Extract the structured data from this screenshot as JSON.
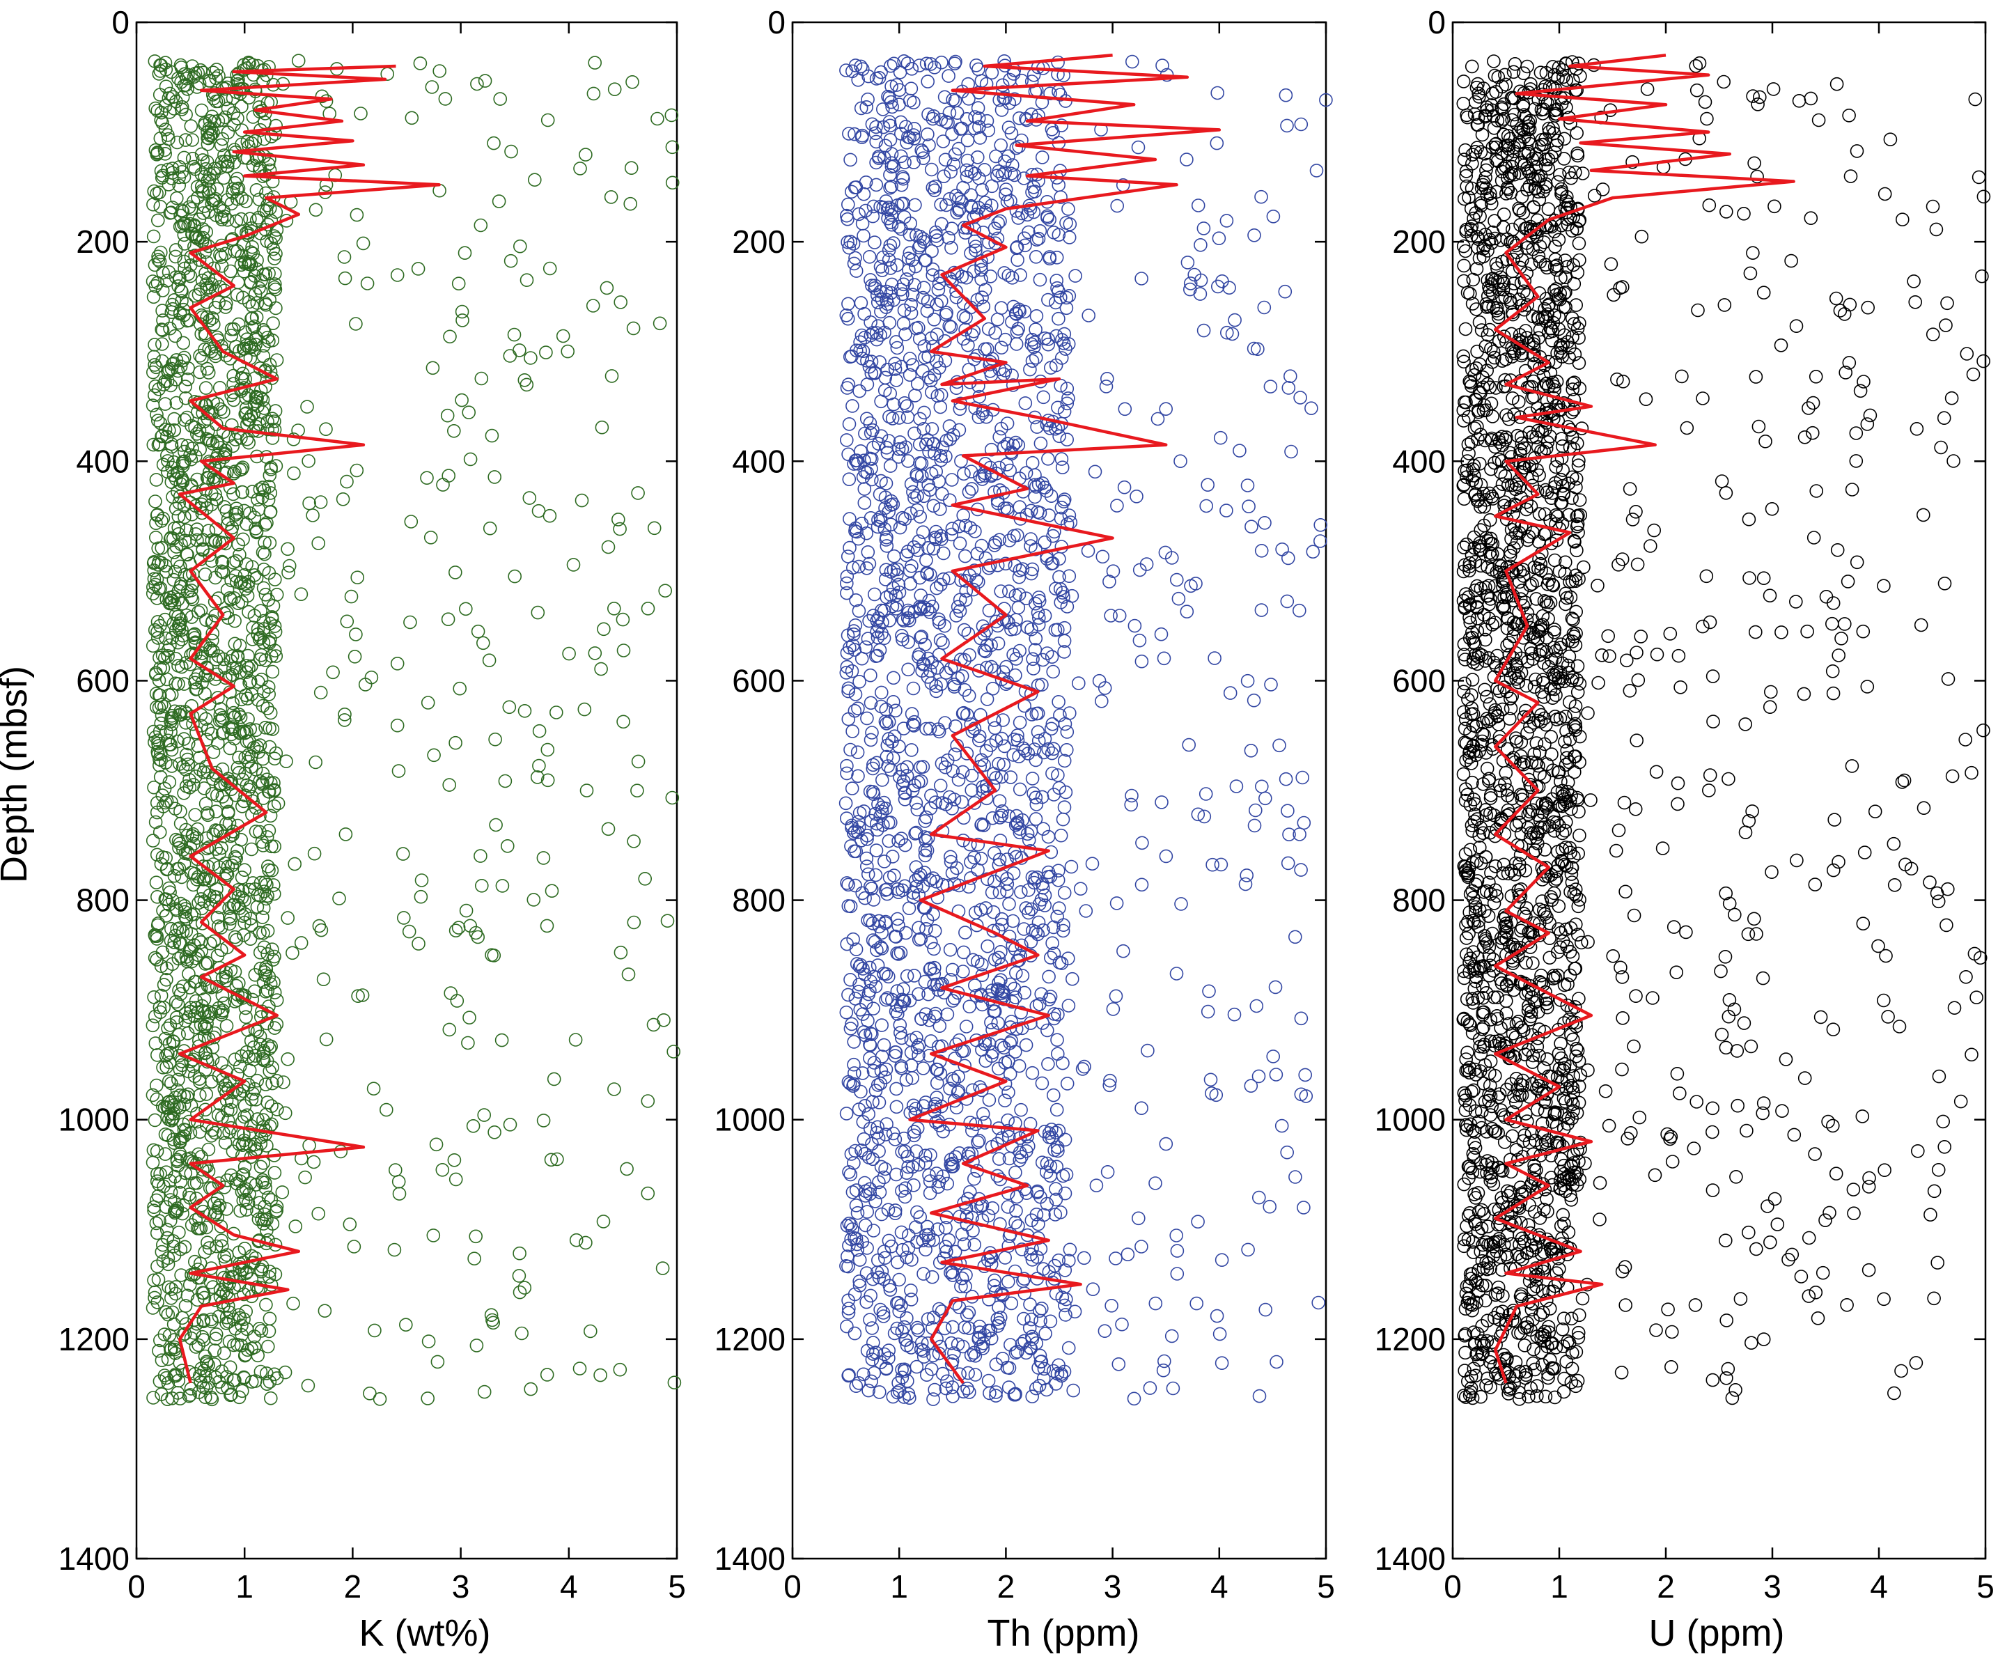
{
  "chart_data": [
    {
      "type": "scatter",
      "xlabel": "K (wt%)",
      "ylabel": "Depth (mbsf)",
      "xlim": [
        0,
        5
      ],
      "ylim": [
        0,
        1400
      ],
      "y_inverted": true,
      "xticks": [
        "0",
        "1",
        "2",
        "3",
        "4",
        "5"
      ],
      "yticks": [
        "0",
        "200",
        "400",
        "600",
        "800",
        "1000",
        "1200",
        "1400"
      ],
      "marker_color": "#2e6b22",
      "line_color": "#e8191e",
      "series": [
        {
          "kind": "scatter-open-circles",
          "depth_range": [
            35,
            1255
          ],
          "typical_range": [
            0.15,
            1.3
          ],
          "max_value": 5
        },
        {
          "kind": "line",
          "points": [
            [
              2.4,
              40
            ],
            [
              0.9,
              45
            ],
            [
              2.3,
              52
            ],
            [
              0.6,
              62
            ],
            [
              1.8,
              70
            ],
            [
              1.1,
              80
            ],
            [
              1.9,
              90
            ],
            [
              1.0,
              100
            ],
            [
              2.0,
              108
            ],
            [
              0.9,
              118
            ],
            [
              2.1,
              130
            ],
            [
              1.0,
              140
            ],
            [
              2.8,
              148
            ],
            [
              1.2,
              160
            ],
            [
              1.5,
              175
            ],
            [
              1.0,
              195
            ],
            [
              0.5,
              210
            ],
            [
              0.9,
              240
            ],
            [
              0.5,
              260
            ],
            [
              0.8,
              300
            ],
            [
              1.3,
              325
            ],
            [
              0.5,
              345
            ],
            [
              0.8,
              370
            ],
            [
              2.1,
              385
            ],
            [
              0.6,
              400
            ],
            [
              0.9,
              420
            ],
            [
              0.4,
              430
            ],
            [
              0.9,
              470
            ],
            [
              0.5,
              500
            ],
            [
              0.8,
              540
            ],
            [
              0.5,
              580
            ],
            [
              0.9,
              605
            ],
            [
              0.5,
              630
            ],
            [
              0.7,
              680
            ],
            [
              1.2,
              720
            ],
            [
              0.5,
              760
            ],
            [
              0.9,
              790
            ],
            [
              0.6,
              820
            ],
            [
              1.0,
              850
            ],
            [
              0.6,
              870
            ],
            [
              1.3,
              905
            ],
            [
              0.4,
              940
            ],
            [
              1.0,
              965
            ],
            [
              0.5,
              1000
            ],
            [
              2.1,
              1025
            ],
            [
              0.5,
              1040
            ],
            [
              0.8,
              1060
            ],
            [
              0.5,
              1080
            ],
            [
              0.9,
              1105
            ],
            [
              1.5,
              1120
            ],
            [
              0.5,
              1140
            ],
            [
              1.4,
              1155
            ],
            [
              0.6,
              1170
            ],
            [
              0.4,
              1200
            ],
            [
              0.5,
              1240
            ]
          ]
        }
      ]
    },
    {
      "type": "scatter",
      "xlabel": "Th (ppm)",
      "ylabel": "",
      "xlim": [
        0,
        5
      ],
      "ylim": [
        0,
        1400
      ],
      "y_inverted": true,
      "xticks": [
        "0",
        "1",
        "2",
        "3",
        "4",
        "5"
      ],
      "yticks": [
        "0",
        "200",
        "400",
        "600",
        "800",
        "1000",
        "1200",
        "1400"
      ],
      "marker_color": "#3347a3",
      "line_color": "#e8191e",
      "series": [
        {
          "kind": "scatter-open-circles",
          "depth_range": [
            35,
            1255
          ],
          "typical_range": [
            0.5,
            2.6
          ],
          "max_value": 5
        },
        {
          "kind": "line",
          "points": [
            [
              3.0,
              30
            ],
            [
              1.8,
              40
            ],
            [
              3.7,
              50
            ],
            [
              1.5,
              62
            ],
            [
              3.2,
              75
            ],
            [
              2.2,
              90
            ],
            [
              4.0,
              98
            ],
            [
              2.1,
              112
            ],
            [
              3.4,
              125
            ],
            [
              2.2,
              140
            ],
            [
              3.6,
              148
            ],
            [
              2.0,
              170
            ],
            [
              1.6,
              185
            ],
            [
              2.0,
              205
            ],
            [
              1.4,
              230
            ],
            [
              1.8,
              270
            ],
            [
              1.3,
              300
            ],
            [
              2.0,
              310
            ],
            [
              1.4,
              330
            ],
            [
              2.5,
              325
            ],
            [
              1.5,
              345
            ],
            [
              2.3,
              360
            ],
            [
              3.5,
              385
            ],
            [
              1.6,
              395
            ],
            [
              2.2,
              425
            ],
            [
              1.5,
              440
            ],
            [
              3.0,
              470
            ],
            [
              1.5,
              500
            ],
            [
              2.0,
              540
            ],
            [
              1.4,
              580
            ],
            [
              2.3,
              610
            ],
            [
              1.5,
              650
            ],
            [
              1.9,
              700
            ],
            [
              1.3,
              740
            ],
            [
              2.4,
              755
            ],
            [
              1.2,
              800
            ],
            [
              1.9,
              830
            ],
            [
              2.3,
              850
            ],
            [
              1.4,
              880
            ],
            [
              2.4,
              905
            ],
            [
              1.3,
              940
            ],
            [
              2.0,
              965
            ],
            [
              1.1,
              1000
            ],
            [
              2.3,
              1010
            ],
            [
              1.6,
              1040
            ],
            [
              2.2,
              1060
            ],
            [
              1.3,
              1085
            ],
            [
              2.4,
              1110
            ],
            [
              1.4,
              1130
            ],
            [
              2.7,
              1150
            ],
            [
              1.5,
              1165
            ],
            [
              1.3,
              1200
            ],
            [
              1.6,
              1240
            ]
          ]
        }
      ]
    },
    {
      "type": "scatter",
      "xlabel": "U (ppm)",
      "ylabel": "",
      "xlim": [
        0,
        5
      ],
      "ylim": [
        0,
        1400
      ],
      "y_inverted": true,
      "xticks": [
        "0",
        "1",
        "2",
        "3",
        "4",
        "5"
      ],
      "yticks": [
        "0",
        "200",
        "400",
        "600",
        "800",
        "1000",
        "1200",
        "1400"
      ],
      "marker_color": "#000000",
      "line_color": "#e8191e",
      "series": [
        {
          "kind": "scatter-open-circles",
          "depth_range": [
            35,
            1255
          ],
          "typical_range": [
            0.1,
            1.2
          ],
          "max_value": 5
        },
        {
          "kind": "line",
          "points": [
            [
              2.0,
              30
            ],
            [
              1.1,
              40
            ],
            [
              2.4,
              48
            ],
            [
              0.6,
              65
            ],
            [
              2.0,
              75
            ],
            [
              1.0,
              88
            ],
            [
              2.4,
              100
            ],
            [
              1.2,
              110
            ],
            [
              2.6,
              120
            ],
            [
              1.3,
              135
            ],
            [
              3.2,
              145
            ],
            [
              1.5,
              160
            ],
            [
              0.9,
              180
            ],
            [
              0.5,
              210
            ],
            [
              0.8,
              250
            ],
            [
              0.4,
              280
            ],
            [
              0.9,
              310
            ],
            [
              0.5,
              330
            ],
            [
              1.3,
              350
            ],
            [
              0.6,
              360
            ],
            [
              1.9,
              385
            ],
            [
              0.5,
              400
            ],
            [
              0.8,
              430
            ],
            [
              0.4,
              450
            ],
            [
              1.1,
              465
            ],
            [
              0.5,
              500
            ],
            [
              0.7,
              550
            ],
            [
              0.4,
              600
            ],
            [
              0.8,
              620
            ],
            [
              0.4,
              660
            ],
            [
              0.8,
              700
            ],
            [
              0.4,
              740
            ],
            [
              0.9,
              770
            ],
            [
              0.5,
              810
            ],
            [
              0.9,
              830
            ],
            [
              0.4,
              860
            ],
            [
              1.3,
              905
            ],
            [
              0.4,
              940
            ],
            [
              1.0,
              970
            ],
            [
              0.5,
              1000
            ],
            [
              1.3,
              1020
            ],
            [
              0.5,
              1040
            ],
            [
              0.9,
              1060
            ],
            [
              0.4,
              1090
            ],
            [
              1.2,
              1120
            ],
            [
              0.5,
              1140
            ],
            [
              1.4,
              1150
            ],
            [
              0.6,
              1170
            ],
            [
              0.4,
              1210
            ],
            [
              0.5,
              1240
            ]
          ]
        }
      ]
    }
  ]
}
